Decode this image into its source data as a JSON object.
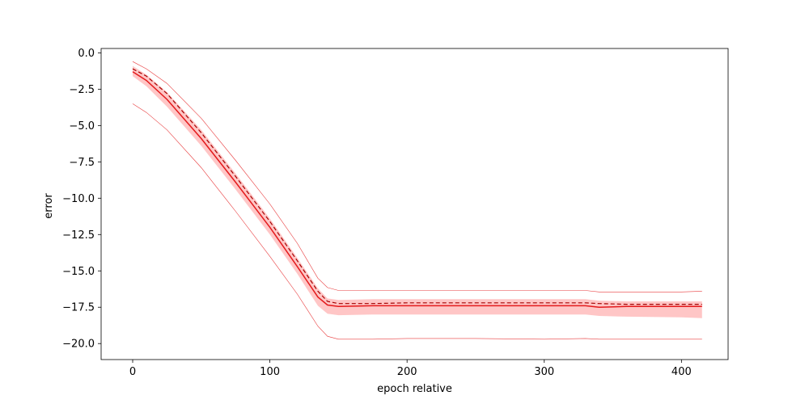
{
  "chart_data": {
    "type": "line",
    "title": "",
    "xlabel": "epoch relative",
    "ylabel": "error",
    "xlim": [
      -23,
      434
    ],
    "ylim": [
      -21.1,
      0.3
    ],
    "xticks": [
      0,
      100,
      200,
      300,
      400
    ],
    "xtick_labels": [
      "0",
      "100",
      "200",
      "300",
      "400"
    ],
    "yticks": [
      0.0,
      -2.5,
      -5.0,
      -7.5,
      -10.0,
      -12.5,
      -15.0,
      -17.5,
      -20.0
    ],
    "ytick_labels": [
      "0.0",
      "−2.5",
      "−5.0",
      "−7.5",
      "−10.0",
      "−12.5",
      "−15.0",
      "−17.5",
      "−20.0"
    ],
    "grid": false,
    "legend": "none",
    "colors": {
      "main": "#e41a1c",
      "band": "#ffb3b3",
      "dashed": "#a50000"
    },
    "x": [
      0,
      10,
      25,
      50,
      75,
      100,
      120,
      135,
      142,
      150,
      175,
      200,
      250,
      300,
      330,
      340,
      360,
      400,
      415
    ],
    "series": [
      {
        "values": [
          -1.3,
          -1.9,
          -3.2,
          -5.9,
          -8.9,
          -12.0,
          -14.7,
          -16.8,
          -17.35,
          -17.45,
          -17.4,
          -17.4,
          -17.4,
          -17.4,
          -17.4,
          -17.5,
          -17.45,
          -17.45,
          -17.45
        ]
      },
      {
        "values": [
          -1.1,
          -1.6,
          -2.8,
          -5.5,
          -8.5,
          -11.6,
          -14.3,
          -16.4,
          -17.1,
          -17.25,
          -17.25,
          -17.2,
          -17.2,
          -17.2,
          -17.2,
          -17.25,
          -17.3,
          -17.3,
          -17.3
        ]
      },
      {
        "values": [
          -0.6,
          -1.1,
          -2.1,
          -4.5,
          -7.4,
          -10.4,
          -13.1,
          -15.5,
          -16.15,
          -16.35,
          -16.35,
          -16.35,
          -16.35,
          -16.35,
          -16.35,
          -16.45,
          -16.45,
          -16.45,
          -16.4
        ]
      },
      {
        "values": [
          -3.5,
          -4.1,
          -5.3,
          -7.9,
          -10.9,
          -14.0,
          -16.6,
          -18.8,
          -19.5,
          -19.7,
          -19.7,
          -19.65,
          -19.65,
          -19.7,
          -19.65,
          -19.7,
          -19.7,
          -19.7,
          -19.7
        ]
      },
      {
        "values": [
          -0.9,
          -1.5,
          -2.7,
          -5.3,
          -8.3,
          -11.4,
          -14.1,
          -16.2,
          -16.9,
          -17.0,
          -16.95,
          -16.95,
          -16.95,
          -16.95,
          -16.95,
          -17.05,
          -17.1,
          -17.1,
          -17.1
        ]
      },
      {
        "values": [
          -1.6,
          -2.3,
          -3.7,
          -6.4,
          -9.4,
          -12.5,
          -15.2,
          -17.4,
          -17.95,
          -18.05,
          -18.0,
          -18.0,
          -18.0,
          -18.0,
          -18.0,
          -18.1,
          -18.15,
          -18.2,
          -18.25
        ]
      }
    ]
  }
}
